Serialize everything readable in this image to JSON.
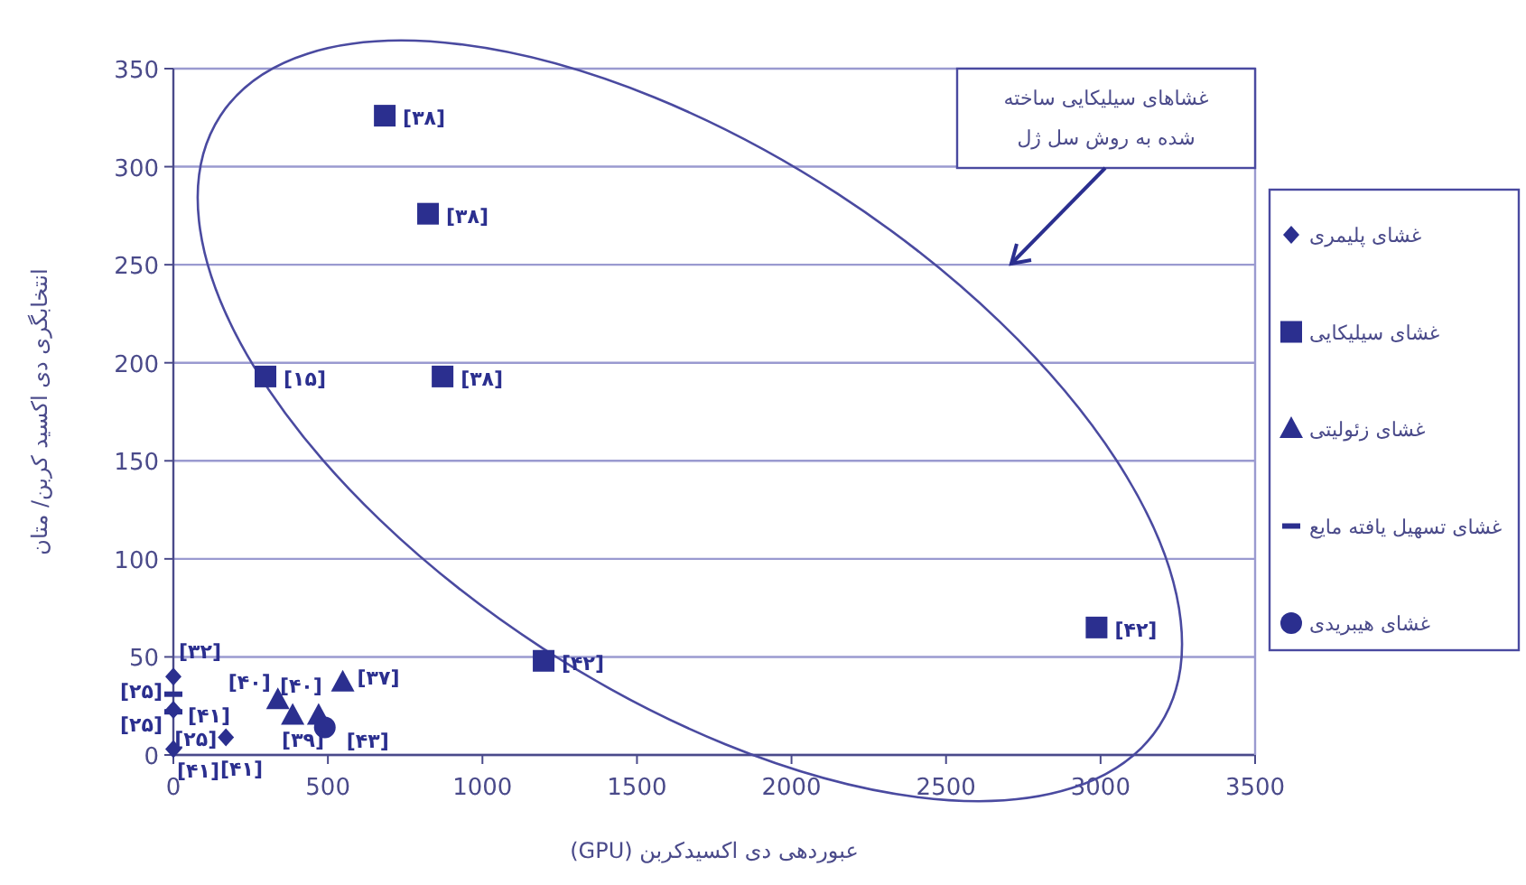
{
  "chart_data": {
    "type": "scatter",
    "xlabel": "عبوردهی دی اکسیدکربن (GPU)",
    "ylabel": "انتخابگری دی اکسید کربن/ متان",
    "xlim": [
      0,
      3500
    ],
    "xticks": [
      0,
      500,
      1000,
      1500,
      2000,
      2500,
      3000,
      3500
    ],
    "ylim": [
      0,
      350
    ],
    "yticks": [
      0,
      50,
      100,
      150,
      200,
      250,
      300,
      350
    ],
    "grid": "y",
    "legend": "right",
    "series": [
      {
        "name": "غشای پلیمری",
        "color": "#2b2f8f",
        "marker": "diamond",
        "x": [
          0,
          0,
          170,
          0
        ],
        "values": [
          40,
          23,
          9,
          3
        ]
      },
      {
        "name": "غشای سیلیکایی",
        "color": "#2b2f8f",
        "marker": "square",
        "x": [
          684,
          824,
          298,
          871,
          1198,
          2987
        ],
        "values": [
          326,
          276,
          193,
          193,
          48,
          65
        ]
      },
      {
        "name": "غشای زئولیتی",
        "color": "#2b2f8f",
        "marker": "triangle",
        "x": [
          338,
          386,
          470,
          548
        ],
        "values": [
          28,
          20,
          20,
          37
        ]
      },
      {
        "name": "غشای تسهیل یافته مایع",
        "color": "#2b2f8f",
        "x": [
          0,
          0
        ],
        "values": [
          31,
          22
        ]
      },
      {
        "name": "غشای هیبریدی",
        "color": "#2b2f8f",
        "marker": "circle",
        "x": [
          490
        ],
        "values": [
          14
        ]
      }
    ],
    "annotations": [
      "غشاهای سیلیکایی ساخته\nشده به روش سل ژل",
      {
        "text": "[۳۸]",
        "x": 684,
        "y": 326
      },
      {
        "text": "[۳۸]",
        "x": 824,
        "y": 276
      },
      {
        "text": "[۱۵]",
        "x": 298,
        "y": 193
      },
      {
        "text": "[۳۸]",
        "x": 871,
        "y": 193
      },
      {
        "text": "[۴۲]",
        "x": 1198,
        "y": 48
      },
      {
        "text": "[۴۲]",
        "x": 2987,
        "y": 65
      },
      {
        "text": "[۳۲]",
        "x": 0,
        "y": 40
      },
      {
        "text": "[۲۵]",
        "x": 0,
        "y": 31
      },
      {
        "text": "[۲۵]",
        "x": 0,
        "y": 23
      },
      {
        "text": "[۴۱]",
        "x": 0,
        "y": 22
      },
      {
        "text": "[۲۵]",
        "x": 170,
        "y": 9
      },
      {
        "text": "[۴۱]",
        "x": 0,
        "y": 3
      },
      {
        "text": "[۴۱]",
        "x": 0,
        "y": 3
      },
      {
        "text": "[۴۰]",
        "x": 338,
        "y": 28
      },
      {
        "text": "[۳۹]",
        "x": 386,
        "y": 20
      },
      {
        "text": "[۴۰]",
        "x": 470,
        "y": 20
      },
      {
        "text": "[۳۷]",
        "x": 548,
        "y": 37
      },
      {
        "text": "[۴۳]",
        "x": 490,
        "y": 14
      }
    ]
  }
}
